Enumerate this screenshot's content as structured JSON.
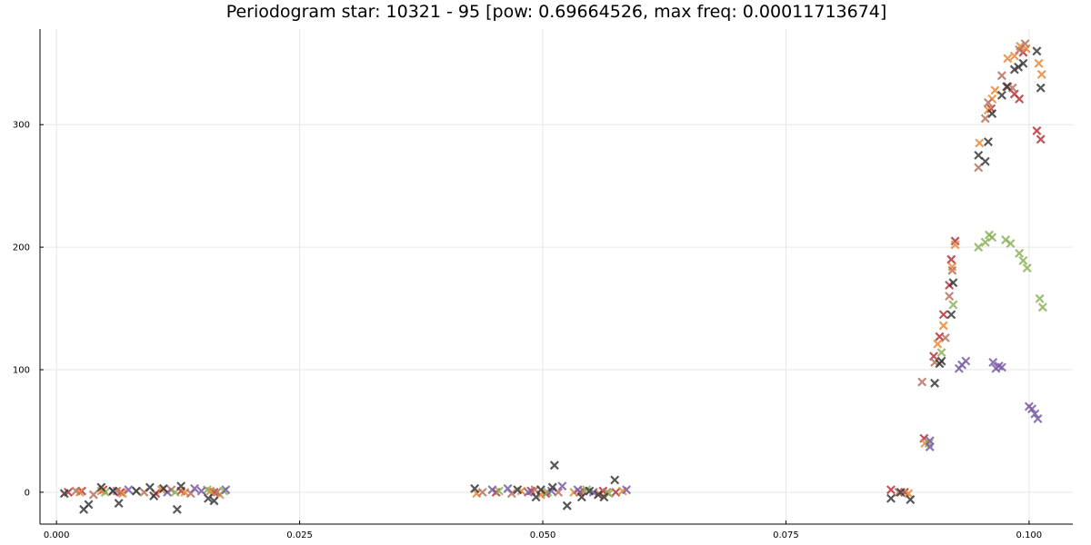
{
  "chart_data": {
    "type": "scatter",
    "title": "Periodogram star: 10321 - 95 [pow: 0.69664526, max freq: 0.00011713674]",
    "xlabel": "",
    "ylabel": "",
    "xlim": [
      -0.0017,
      0.1045
    ],
    "ylim": [
      -26,
      378
    ],
    "xticks": [
      0.0,
      0.025,
      0.05,
      0.075,
      0.1
    ],
    "xtick_labels": [
      "0.000",
      "0.025",
      "0.050",
      "0.075",
      "0.100"
    ],
    "yticks": [
      0,
      100,
      200,
      300
    ],
    "ytick_labels": [
      "0",
      "100",
      "200",
      "300"
    ],
    "grid": true,
    "legend": "none",
    "marker": "x",
    "series": [
      {
        "color": "#b8343a",
        "points": [
          [
            0.0012,
            0
          ],
          [
            0.0026,
            1
          ],
          [
            0.0048,
            2
          ],
          [
            0.0066,
            0
          ],
          [
            0.0102,
            -1
          ],
          [
            0.0128,
            1
          ],
          [
            0.0162,
            0
          ],
          [
            0.0452,
            0
          ],
          [
            0.0488,
            1
          ],
          [
            0.0503,
            -1
          ],
          [
            0.0538,
            0
          ],
          [
            0.0562,
            1
          ],
          [
            0.0575,
            0
          ],
          [
            0.0858,
            2
          ],
          [
            0.0872,
            0
          ],
          [
            0.0892,
            44
          ],
          [
            0.0902,
            111
          ],
          [
            0.0908,
            127
          ],
          [
            0.0912,
            145
          ],
          [
            0.0918,
            169
          ],
          [
            0.092,
            190
          ],
          [
            0.0924,
            205
          ],
          [
            0.0961,
            313
          ],
          [
            0.0978,
            331
          ],
          [
            0.0985,
            325
          ],
          [
            0.099,
            321
          ],
          [
            0.0994,
            359
          ],
          [
            0.1008,
            295
          ],
          [
            0.1012,
            288
          ]
        ]
      },
      {
        "color": "#e8893a",
        "points": [
          [
            0.0024,
            0
          ],
          [
            0.0046,
            1
          ],
          [
            0.0068,
            -1
          ],
          [
            0.0108,
            2
          ],
          [
            0.0132,
            0
          ],
          [
            0.0158,
            1
          ],
          [
            0.0168,
            -2
          ],
          [
            0.0432,
            -1
          ],
          [
            0.0478,
            1
          ],
          [
            0.0498,
            -2
          ],
          [
            0.0532,
            0
          ],
          [
            0.0558,
            -1
          ],
          [
            0.0582,
            1
          ],
          [
            0.0876,
            -1
          ],
          [
            0.0893,
            40
          ],
          [
            0.0906,
            121
          ],
          [
            0.0912,
            136
          ],
          [
            0.0921,
            184
          ],
          [
            0.0924,
            202
          ],
          [
            0.0949,
            285
          ],
          [
            0.0958,
            312
          ],
          [
            0.0962,
            321
          ],
          [
            0.0965,
            328
          ],
          [
            0.0978,
            354
          ],
          [
            0.0985,
            356
          ],
          [
            0.0991,
            364
          ],
          [
            0.0997,
            362
          ],
          [
            0.101,
            350
          ],
          [
            0.1013,
            341
          ]
        ]
      },
      {
        "color": "#b8735f",
        "points": [
          [
            0.002,
            1
          ],
          [
            0.0038,
            -2
          ],
          [
            0.0062,
            1
          ],
          [
            0.009,
            0
          ],
          [
            0.0118,
            2
          ],
          [
            0.0138,
            -1
          ],
          [
            0.0165,
            0
          ],
          [
            0.0438,
            0
          ],
          [
            0.0468,
            -1
          ],
          [
            0.0492,
            2
          ],
          [
            0.0516,
            0
          ],
          [
            0.0542,
            1
          ],
          [
            0.0566,
            0
          ],
          [
            0.0866,
            0
          ],
          [
            0.089,
            90
          ],
          [
            0.0903,
            106
          ],
          [
            0.0914,
            126
          ],
          [
            0.0918,
            160
          ],
          [
            0.0921,
            181
          ],
          [
            0.0948,
            265
          ],
          [
            0.0955,
            305
          ],
          [
            0.0958,
            318
          ],
          [
            0.0972,
            340
          ],
          [
            0.0983,
            330
          ],
          [
            0.099,
            361
          ],
          [
            0.0996,
            366
          ]
        ]
      },
      {
        "color": "#8bb25a",
        "points": [
          [
            0.005,
            0
          ],
          [
            0.0082,
            1
          ],
          [
            0.0122,
            0
          ],
          [
            0.0155,
            2
          ],
          [
            0.0172,
            1
          ],
          [
            0.0455,
            1
          ],
          [
            0.0505,
            0
          ],
          [
            0.0545,
            2
          ],
          [
            0.0568,
            -1
          ],
          [
            0.0897,
            40
          ],
          [
            0.091,
            114
          ],
          [
            0.0922,
            153
          ],
          [
            0.0948,
            200
          ],
          [
            0.0955,
            204
          ],
          [
            0.0959,
            210
          ],
          [
            0.0962,
            208
          ],
          [
            0.0976,
            206
          ],
          [
            0.0981,
            203
          ],
          [
            0.099,
            195
          ],
          [
            0.0994,
            189
          ],
          [
            0.0998,
            183
          ],
          [
            0.1011,
            158
          ],
          [
            0.1014,
            151
          ]
        ]
      },
      {
        "color": "#7b5fa6",
        "points": [
          [
            0.0058,
            1
          ],
          [
            0.0074,
            2
          ],
          [
            0.0114,
            0
          ],
          [
            0.0142,
            3
          ],
          [
            0.0149,
            1
          ],
          [
            0.0174,
            2
          ],
          [
            0.0448,
            2
          ],
          [
            0.0464,
            3
          ],
          [
            0.0485,
            0
          ],
          [
            0.0509,
            1
          ],
          [
            0.052,
            5
          ],
          [
            0.0536,
            2
          ],
          [
            0.0552,
            0
          ],
          [
            0.0586,
            2
          ],
          [
            0.0898,
            37
          ],
          [
            0.0898,
            42
          ],
          [
            0.0928,
            101
          ],
          [
            0.0931,
            104
          ],
          [
            0.0935,
            107
          ],
          [
            0.0963,
            106
          ],
          [
            0.0966,
            101
          ],
          [
            0.0969,
            103
          ],
          [
            0.0972,
            102
          ],
          [
            0.1,
            70
          ],
          [
            0.1003,
            68
          ],
          [
            0.1006,
            64
          ],
          [
            0.1009,
            60
          ]
        ]
      },
      {
        "color": "#3a3a3a",
        "points": [
          [
            0.0008,
            -1
          ],
          [
            0.0028,
            -14
          ],
          [
            0.0033,
            -10
          ],
          [
            0.0046,
            4
          ],
          [
            0.0058,
            1
          ],
          [
            0.0064,
            -9
          ],
          [
            0.0082,
            1
          ],
          [
            0.0096,
            4
          ],
          [
            0.01,
            -3
          ],
          [
            0.011,
            3
          ],
          [
            0.0124,
            -14
          ],
          [
            0.0128,
            5
          ],
          [
            0.0156,
            -5
          ],
          [
            0.0162,
            -7
          ],
          [
            0.043,
            3
          ],
          [
            0.0474,
            2
          ],
          [
            0.0493,
            -4
          ],
          [
            0.0498,
            2
          ],
          [
            0.051,
            4
          ],
          [
            0.0512,
            22
          ],
          [
            0.0525,
            -11
          ],
          [
            0.054,
            -4
          ],
          [
            0.0548,
            1
          ],
          [
            0.0557,
            -2
          ],
          [
            0.0563,
            -4
          ],
          [
            0.0574,
            10
          ],
          [
            0.0858,
            -5
          ],
          [
            0.0868,
            0
          ],
          [
            0.0878,
            -6
          ],
          [
            0.0903,
            89
          ],
          [
            0.0908,
            105
          ],
          [
            0.091,
            107
          ],
          [
            0.092,
            145
          ],
          [
            0.0922,
            171
          ],
          [
            0.0948,
            275
          ],
          [
            0.0955,
            270
          ],
          [
            0.0958,
            286
          ],
          [
            0.0962,
            309
          ],
          [
            0.0972,
            324
          ],
          [
            0.0977,
            331
          ],
          [
            0.0985,
            345
          ],
          [
            0.0989,
            347
          ],
          [
            0.0994,
            350
          ],
          [
            0.1008,
            360
          ],
          [
            0.1012,
            330
          ]
        ]
      }
    ]
  }
}
